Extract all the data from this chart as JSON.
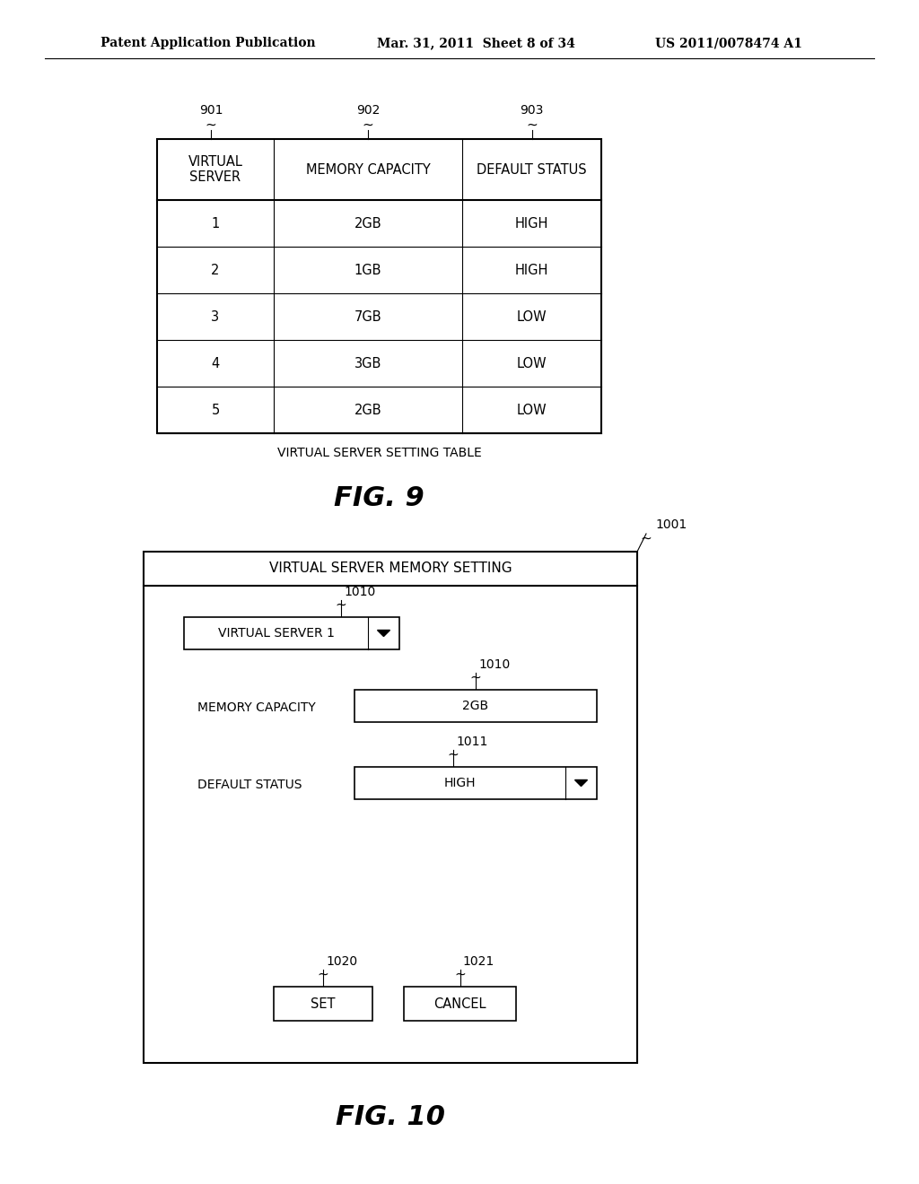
{
  "header_text_left": "Patent Application Publication",
  "header_text_mid": "Mar. 31, 2011  Sheet 8 of 34",
  "header_text_right": "US 2011/0078474 A1",
  "fig9_label": "FIG. 9",
  "fig9_caption": "VIRTUAL SERVER SETTING TABLE",
  "fig9_ref901": "901",
  "fig9_ref902": "902",
  "fig9_ref903": "903",
  "fig9_col_headers": [
    "VIRTUAL\nSERVER",
    "MEMORY CAPACITY",
    "DEFAULT STATUS"
  ],
  "fig9_rows": [
    [
      "1",
      "2GB",
      "HIGH"
    ],
    [
      "2",
      "1GB",
      "HIGH"
    ],
    [
      "3",
      "7GB",
      "LOW"
    ],
    [
      "4",
      "3GB",
      "LOW"
    ],
    [
      "5",
      "2GB",
      "LOW"
    ]
  ],
  "fig10_title": "VIRTUAL SERVER MEMORY SETTING",
  "fig10_label": "FIG. 10",
  "fig10_ref1001": "1001",
  "fig10_ref1010a": "1010",
  "fig10_ref1010b": "1010",
  "fig10_ref1011": "1011",
  "fig10_ref1020": "1020",
  "fig10_ref1021": "1021",
  "fig10_vs_label": "VIRTUAL SERVER 1",
  "fig10_mc_label": "MEMORY CAPACITY",
  "fig10_mc_value": "2GB",
  "fig10_ds_label": "DEFAULT STATUS",
  "fig10_ds_value": "HIGH",
  "fig10_btn_set": "SET",
  "fig10_btn_cancel": "CANCEL",
  "bg_color": "#ffffff",
  "line_color": "#000000",
  "text_color": "#000000"
}
